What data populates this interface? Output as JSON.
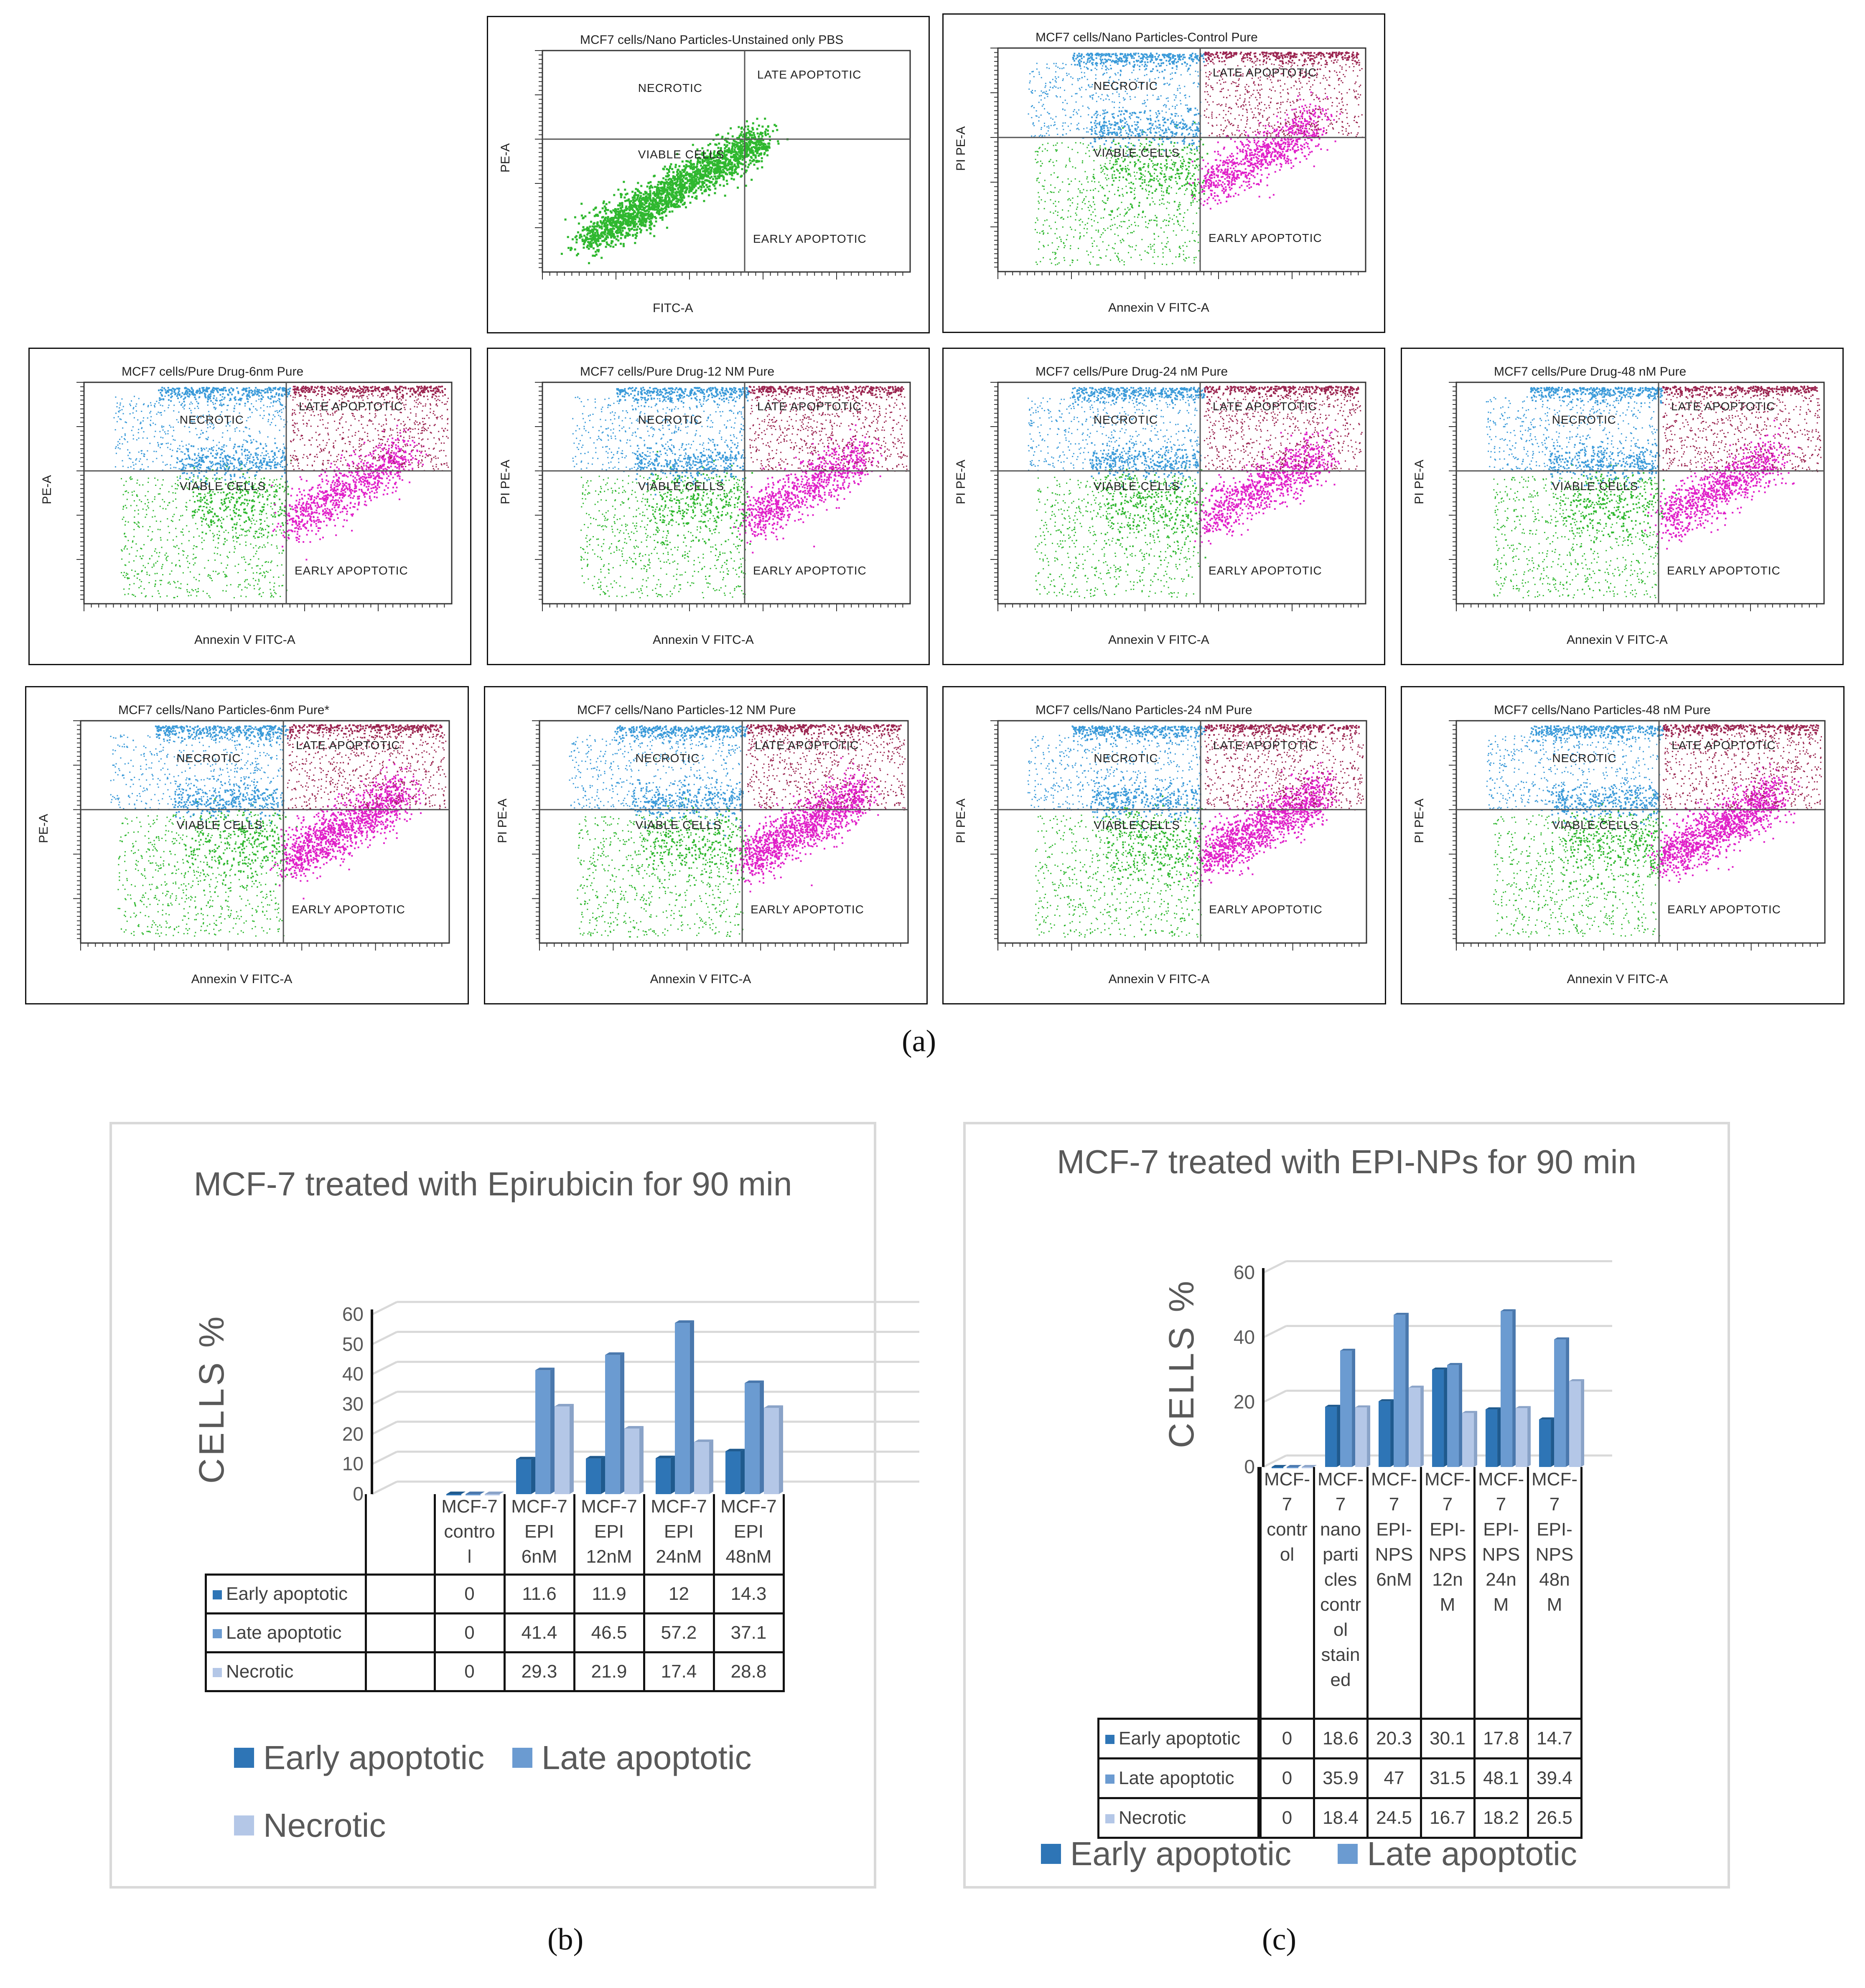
{
  "flow_panels": [
    {
      "title": "MCF7 cells/Nano Particles-Unstained only PBS",
      "ylabel": "PE-A",
      "xlabel": "FITC-A",
      "necrotic": "NECROTIC",
      "late": "LATE APOPTOTIC",
      "viable": "VIABLE CELLS",
      "early": "EARLY APOPTOTIC",
      "pattern": "unstained"
    },
    {
      "title": "MCF7 cells/Nano Particles-Control Pure",
      "ylabel": "PI PE-A",
      "xlabel": "Annexin V FITC-A",
      "necrotic": "NECROTIC",
      "late": "LATE APOPTOTIC",
      "viable": "VIABLE CELLS",
      "early": "EARLY APOPTOTIC",
      "pattern": "control"
    },
    {
      "title": "MCF7 cells/Pure Drug-6nm Pure",
      "ylabel": "PE-A",
      "xlabel": "Annexin V FITC-A",
      "necrotic": "NECROTIC",
      "late": "LATE APOPTOTIC",
      "viable": "VIABLE CELLS",
      "early": "EARLY APOPTOTIC",
      "pattern": "drug"
    },
    {
      "title": "MCF7 cells/Pure Drug-12 NM Pure",
      "ylabel": "PI PE-A",
      "xlabel": "Annexin V FITC-A",
      "necrotic": "NECROTIC",
      "late": "LATE APOPTOTIC",
      "viable": "VIABLE CELLS",
      "early": "EARLY APOPTOTIC",
      "pattern": "drug"
    },
    {
      "title": "MCF7 cells/Pure Drug-24 nM Pure",
      "ylabel": "PI PE-A",
      "xlabel": "Annexin V FITC-A",
      "necrotic": "NECROTIC",
      "late": "LATE APOPTOTIC",
      "viable": "VIABLE CELLS",
      "early": "EARLY APOPTOTIC",
      "pattern": "drug"
    },
    {
      "title": "MCF7 cells/Pure Drug-48 nM Pure",
      "ylabel": "PI PE-A",
      "xlabel": "Annexin V FITC-A",
      "necrotic": "NECROTIC",
      "late": "LATE APOPTOTIC",
      "viable": "VIABLE CELLS",
      "early": "EARLY APOPTOTIC",
      "pattern": "drug"
    },
    {
      "title": "MCF7 cells/Nano Particles-6nm Pure*",
      "ylabel": "PE-A",
      "xlabel": "Annexin V FITC-A",
      "necrotic": "NECROTIC",
      "late": "LATE APOPTOTIC",
      "viable": "VIABLE CELLS",
      "early": "EARLY APOPTOTIC",
      "pattern": "np"
    },
    {
      "title": "MCF7 cells/Nano Particles-12 NM Pure",
      "ylabel": "PI PE-A",
      "xlabel": "Annexin V FITC-A",
      "necrotic": "NECROTIC",
      "late": "LATE APOPTOTIC",
      "viable": "VIABLE CELLS",
      "early": "EARLY APOPTOTIC",
      "pattern": "np"
    },
    {
      "title": "MCF7 cells/Nano Particles-24 nM Pure",
      "ylabel": "PI PE-A",
      "xlabel": "Annexin V FITC-A",
      "necrotic": "NECROTIC",
      "late": "LATE APOPTOTIC",
      "viable": "VIABLE CELLS",
      "early": "EARLY APOPTOTIC",
      "pattern": "np"
    },
    {
      "title": "MCF7 cells/Nano Particles-48 nM Pure",
      "ylabel": "PI PE-A",
      "xlabel": "Annexin V FITC-A",
      "necrotic": "NECROTIC",
      "late": "LATE APOPTOTIC",
      "viable": "VIABLE CELLS",
      "early": "EARLY APOPTOTIC",
      "pattern": "np"
    }
  ],
  "sublabels": {
    "a": "(a)",
    "b": "(b)",
    "c": "(c)"
  },
  "colors": {
    "early": "#2e75b6",
    "late": "#6b9bd1",
    "necrotic": "#b4c7e7",
    "grid": "#d9d9d9",
    "text": "#595959"
  },
  "chart_data": [
    {
      "type": "bar",
      "title": "MCF-7 treated with Epirubicin for 90 min",
      "ylabel": "CELLS  %",
      "ylim": [
        0,
        60
      ],
      "yticks": [
        "0",
        "10",
        "20",
        "30",
        "40",
        "50",
        "60"
      ],
      "categories": [
        "MCF-7 control",
        "MCF-7 EPI 6nM",
        "MCF-7 EPI 12nM",
        "MCF-7 EPI 24nM",
        "MCF-7 EPI 48nM"
      ],
      "category_lines": [
        [
          "MCF-7",
          "contro",
          "l"
        ],
        [
          "MCF-7",
          "EPI",
          "6nM"
        ],
        [
          "MCF-7",
          "EPI",
          "12nM"
        ],
        [
          "MCF-7",
          "EPI",
          "24nM"
        ],
        [
          "MCF-7",
          "EPI",
          "48nM"
        ]
      ],
      "series": [
        {
          "name": "Early apoptotic",
          "values": [
            0,
            11.6,
            11.9,
            12,
            14.3
          ]
        },
        {
          "name": "Late apoptotic",
          "values": [
            0,
            41.4,
            46.5,
            57.2,
            37.1
          ]
        },
        {
          "name": "Necrotic",
          "values": [
            0,
            29.3,
            21.9,
            17.4,
            28.8
          ]
        }
      ],
      "legend": [
        "Early apoptotic",
        "Late apoptotic",
        "Necrotic"
      ]
    },
    {
      "type": "bar",
      "title": "MCF-7 treated with EPI-NPs for 90 min",
      "ylabel": "CELLS %",
      "ylim": [
        0,
        60
      ],
      "yticks": [
        "0",
        "20",
        "40",
        "60"
      ],
      "categories": [
        "MCF-7 control",
        "MCF-7 nanoparticles control stained",
        "MCF-7 EPI-NPS 6nM",
        "MCF-7 EPI-NPS 12nM",
        "MCF-7 EPI-NPS 24nM",
        "MCF-7 EPI-NPS 48nM"
      ],
      "category_lines": [
        [
          "MCF-",
          "7",
          "contr",
          "ol"
        ],
        [
          "MCF-",
          "7",
          "nano",
          "parti",
          "cles",
          "contr",
          "ol",
          "stain",
          "ed"
        ],
        [
          "MCF-",
          "7",
          "EPI-",
          "NPS",
          "6nM"
        ],
        [
          "MCF-",
          "7",
          "EPI-",
          "NPS",
          "12n",
          "M"
        ],
        [
          "MCF-",
          "7",
          "EPI-",
          "NPS",
          "24n",
          "M"
        ],
        [
          "MCF-",
          "7",
          "EPI-",
          "NPS",
          "48n",
          "M"
        ]
      ],
      "series": [
        {
          "name": "Early apoptotic",
          "values": [
            0,
            18.6,
            20.3,
            30.1,
            17.8,
            14.7
          ]
        },
        {
          "name": "Late apoptotic",
          "values": [
            0,
            35.9,
            47,
            31.5,
            48.1,
            39.4
          ]
        },
        {
          "name": "Necrotic",
          "values": [
            0,
            18.4,
            24.5,
            16.7,
            18.2,
            26.5
          ]
        }
      ],
      "legend": [
        "Early apoptotic",
        "Late apoptotic"
      ]
    }
  ]
}
